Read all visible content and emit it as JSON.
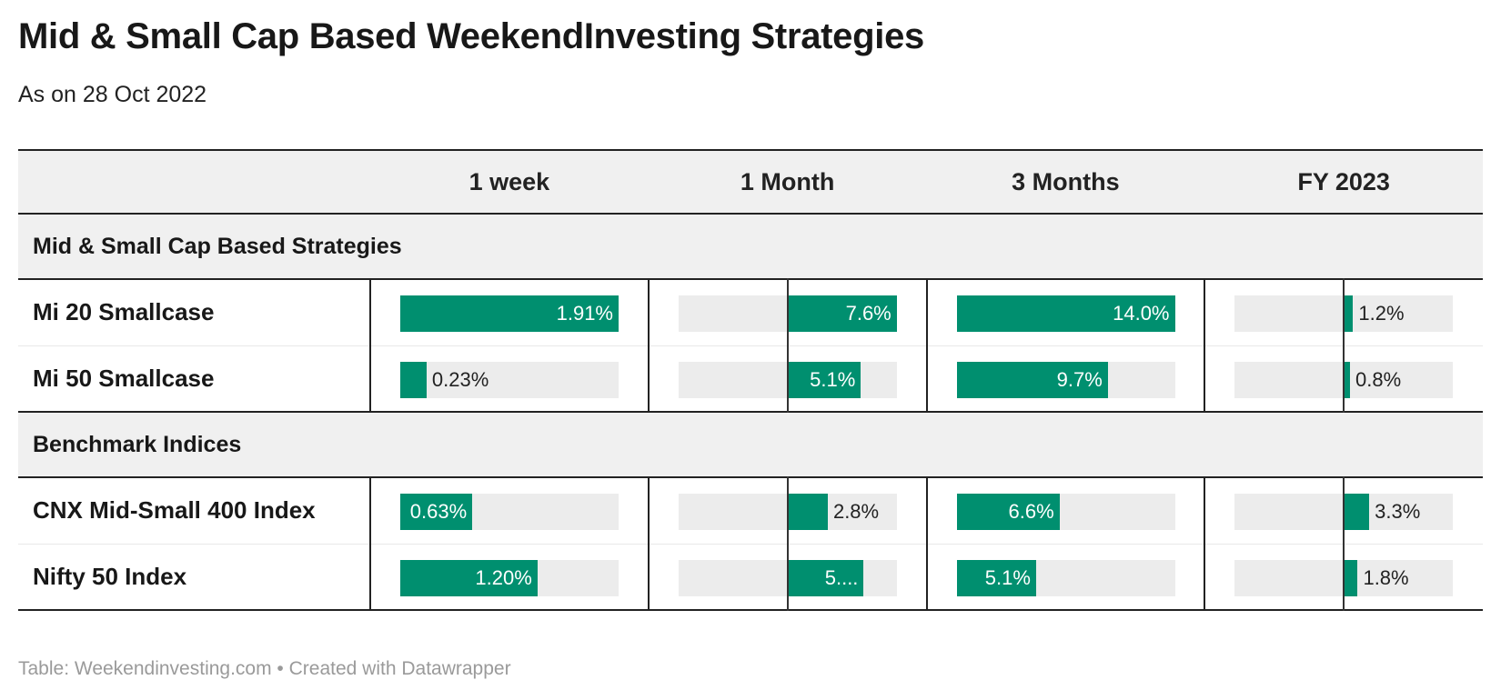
{
  "title": "Mid & Small Cap Based WeekendInvesting Strategies",
  "subtitle": "As on 28 Oct 2022",
  "footer": "Table: Weekendinvesting.com • Created with Datawrapper",
  "colors": {
    "bar": "#008f6f",
    "bar_bg": "#ececec",
    "header_bg": "#f0f0f0"
  },
  "table": {
    "columns": [
      "",
      "1 week",
      "1 Month",
      "3 Months",
      "FY 2023"
    ],
    "groups": [
      {
        "label": "Mid & Small Cap Based Strategies",
        "rows": [
          {
            "name": "Mi 20 Smallcase",
            "cells": [
              "1.91%",
              "7.6%",
              "14.0%",
              "1.2%"
            ]
          },
          {
            "name": "Mi 50 Smallcase",
            "cells": [
              "0.23%",
              "5.1%",
              "9.7%",
              "0.8%"
            ]
          }
        ]
      },
      {
        "label": "Benchmark Indices",
        "rows": [
          {
            "name": "CNX Mid-Small 400 Index",
            "cells": [
              "0.63%",
              "2.8%",
              "6.6%",
              "3.3%"
            ]
          },
          {
            "name": "Nifty 50 Index",
            "cells": [
              "1.20%",
              "5....",
              "5.1%",
              "1.8%"
            ]
          }
        ]
      }
    ]
  },
  "chart_data": {
    "type": "table",
    "title": "Mid & Small Cap Based WeekendInvesting Strategies",
    "subtitle": "As on 28 Oct 2022",
    "columns": [
      "1 week",
      "1 Month",
      "3 Months",
      "FY 2023"
    ],
    "column_domains": [
      [
        0,
        1.91
      ],
      [
        -7.6,
        7.6
      ],
      [
        0,
        14.0
      ],
      [
        -14.2,
        14.2
      ]
    ],
    "groups": [
      "Mid & Small Cap Based Strategies",
      "Benchmark Indices"
    ],
    "rows": [
      {
        "name": "Mi 20 Smallcase",
        "group": "Mid & Small Cap Based Strategies",
        "values": [
          1.91,
          7.6,
          14.0,
          1.2
        ]
      },
      {
        "name": "Mi 50 Smallcase",
        "group": "Mid & Small Cap Based Strategies",
        "values": [
          0.23,
          5.1,
          9.7,
          0.8
        ]
      },
      {
        "name": "CNX Mid-Small 400 Index",
        "group": "Benchmark Indices",
        "values": [
          0.63,
          2.8,
          6.6,
          3.3
        ]
      },
      {
        "name": "Nifty 50 Index",
        "group": "Benchmark Indices",
        "values": [
          1.2,
          5.3,
          5.1,
          1.8
        ]
      }
    ]
  }
}
